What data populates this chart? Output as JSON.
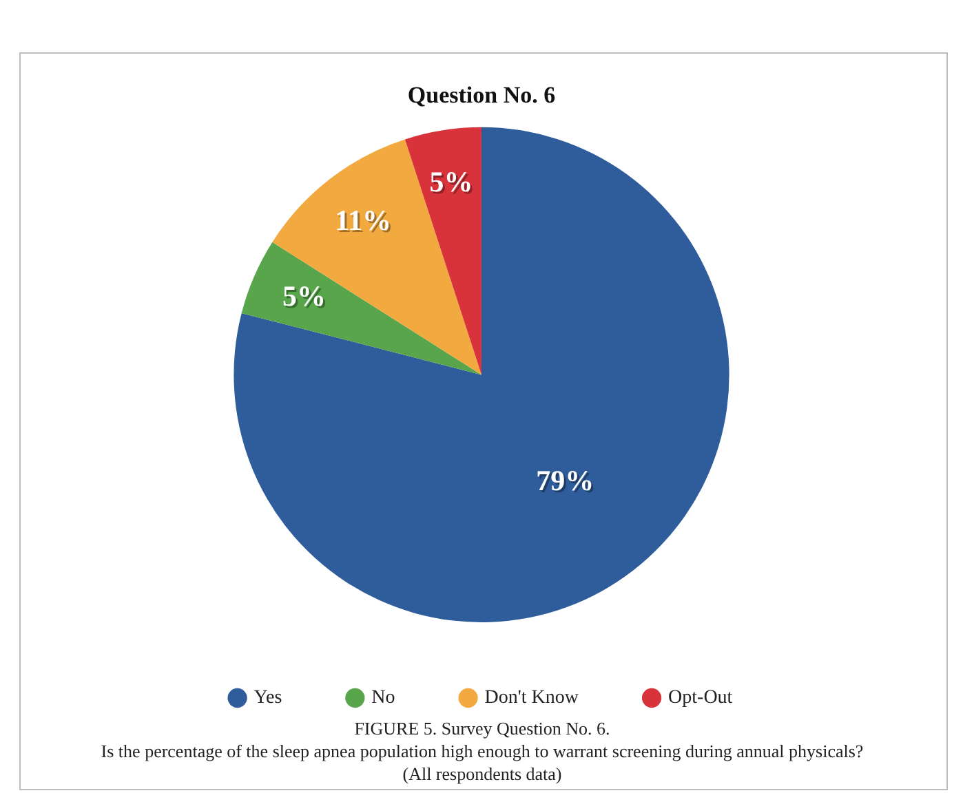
{
  "chart_data": {
    "type": "pie",
    "title": "Question No. 6",
    "categories": [
      "Yes",
      "No",
      "Don't Know",
      "Opt-Out"
    ],
    "values": [
      79,
      5,
      11,
      5
    ],
    "colors": [
      "#2f5d9c",
      "#58a54b",
      "#f1a940",
      "#d8333b"
    ],
    "value_labels": [
      "79%",
      "5%",
      "11%",
      "5%"
    ],
    "legend": "bottom",
    "annotations": [
      "FIGURE 5. Survey Question No. 6.",
      "Is the percentage of the sleep apnea population high enough to warrant screening during annual physicals?",
      "(All respondents data)"
    ]
  }
}
